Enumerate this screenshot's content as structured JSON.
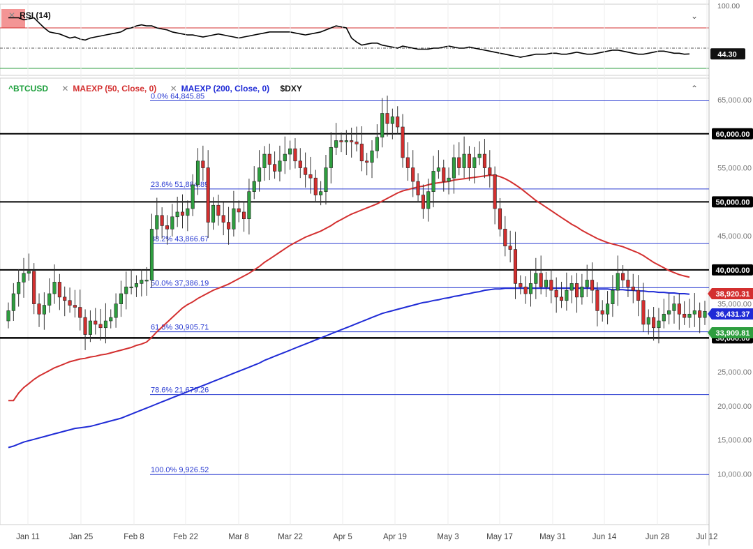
{
  "rsi_panel": {
    "legend": "RSI (14)",
    "axis_top_label": "100.00",
    "current_label": "44.30",
    "levels": {
      "upper": 70,
      "mid": 50,
      "lower": 30
    },
    "colors": {
      "line": "#000000",
      "upper": "#d32f2f",
      "lower": "#2e9e3f",
      "mid": "#555555",
      "overbought_fill": "#f07a7a"
    }
  },
  "legend": {
    "symbol": "^BTCUSD",
    "symbol_color": "#1a9e3a",
    "ma50": "MAEXP (50, Close, 0)",
    "ma50_color": "#d32f2f",
    "ma200": "MAEXP (200, Close, 0)",
    "ma200_color": "#1f2bd6",
    "compare": "$DXY"
  },
  "chart_data": {
    "type": "candlestick",
    "symbol": "^BTCUSD",
    "x_tick_labels": [
      "Jan 11",
      "Jan 25",
      "Feb 8",
      "Feb 22",
      "Mar 8",
      "Mar 22",
      "Apr 5",
      "Apr 19",
      "May 3",
      "May 17",
      "May 31",
      "Jun 14",
      "Jun 28",
      "Jul 12"
    ],
    "y_tick_labels": [
      "65,000.00",
      "60,000.00",
      "55,000.00",
      "50,000.00",
      "45,000.00",
      "40,000.00",
      "35,000.00",
      "30,000.00",
      "25,000.00",
      "20,000.00",
      "15,000.00",
      "10,000.00"
    ],
    "y_ticks": [
      65000,
      60000,
      55000,
      50000,
      45000,
      40000,
      35000,
      30000,
      25000,
      20000,
      15000,
      10000
    ],
    "ylim": [
      9000,
      67000
    ],
    "colors": {
      "up": "#2e9e3f",
      "down": "#d32f2f"
    },
    "horizontal_levels": [
      {
        "value": 60000,
        "label": "60,000.00"
      },
      {
        "value": 50000,
        "label": "50,000.00"
      },
      {
        "value": 40000,
        "label": "40,000.00"
      },
      {
        "value": 30000,
        "label": "30,000.00"
      }
    ],
    "fibonacci": [
      {
        "value": 64845.85,
        "label": "0.0% 64,845.85"
      },
      {
        "value": 51884.89,
        "label": "23.6% 51,884.89"
      },
      {
        "value": 43866.67,
        "label": "38.2% 43,866.67"
      },
      {
        "value": 37386.19,
        "label": "50.0% 37,386.19"
      },
      {
        "value": 30905.71,
        "label": "61.8% 30,905.71"
      },
      {
        "value": 21679.26,
        "label": "78.6% 21,679.26"
      },
      {
        "value": 9926.52,
        "label": "100.0% 9,926.52"
      }
    ],
    "price_labels": [
      {
        "series": "MAEXP (50, Close, 0)",
        "value": 38920.31,
        "label": "38,920.31",
        "color": "#d32f2f"
      },
      {
        "series": "MAEXP (200, Close, 0)",
        "value": 36431.37,
        "label": "36,431.37",
        "color": "#1f2bd6"
      },
      {
        "series": "^BTCUSD",
        "value": 33909.81,
        "label": "33,909.81",
        "color": "#2e9e3f"
      }
    ],
    "candles_close": [
      34000,
      36500,
      38200,
      39500,
      39800,
      35000,
      33500,
      34800,
      36500,
      38200,
      36000,
      35500,
      34800,
      34500,
      33000,
      30500,
      32500,
      32000,
      31500,
      32500,
      33000,
      35000,
      36500,
      37500,
      37500,
      38000,
      38500,
      38500,
      46000,
      48000,
      46500,
      46000,
      47800,
      48500,
      48000,
      49000,
      52500,
      56000,
      55000,
      47000,
      49500,
      48000,
      47000,
      46000,
      49000,
      48500,
      47500,
      51500,
      53000,
      55000,
      57000,
      55500,
      54500,
      56000,
      57000,
      57800,
      56000,
      55000,
      54000,
      53500,
      51000,
      51500,
      55000,
      58000,
      59000,
      58800,
      59000,
      58800,
      58500,
      56000,
      55800,
      57500,
      59500,
      63000,
      61500,
      62500,
      61000,
      56500,
      55000,
      53000,
      51000,
      49000,
      51500,
      54500,
      55000,
      53000,
      53500,
      56500,
      55000,
      57000,
      55000,
      56500,
      57000,
      55000,
      54000,
      49000,
      46000,
      43500,
      43000,
      38000,
      37500,
      36500,
      38000,
      39500,
      37500,
      38500,
      37000,
      36000,
      35500,
      37000,
      38000,
      36000,
      37500,
      38500,
      37000,
      34000,
      33500,
      35000,
      37000,
      39500,
      38500,
      37500,
      37000,
      35500,
      32000,
      33000,
      31500,
      32500,
      33500,
      34000,
      35000,
      33500,
      33000,
      33500,
      34000,
      33000,
      33909.81
    ],
    "ema50": [
      20800,
      20800,
      21900,
      22700,
      23300,
      23900,
      24400,
      24800,
      25200,
      25600,
      25900,
      26200,
      26500,
      26700,
      26900,
      27000,
      27200,
      27300,
      27500,
      27600,
      27800,
      28000,
      28200,
      28400,
      28600,
      28900,
      29100,
      29400,
      30100,
      30900,
      31600,
      32300,
      33000,
      33700,
      34400,
      34900,
      35300,
      35800,
      36200,
      36600,
      37000,
      37300,
      37600,
      37900,
      38300,
      38700,
      39100,
      39500,
      40000,
      40500,
      41100,
      41600,
      42100,
      42600,
      43100,
      43600,
      44000,
      44400,
      44800,
      45100,
      45400,
      45700,
      46100,
      46500,
      47000,
      47400,
      47800,
      48200,
      48500,
      48800,
      49100,
      49400,
      49700,
      50100,
      50500,
      50900,
      51300,
      51600,
      51800,
      52000,
      52200,
      52300,
      52500,
      52700,
      52800,
      52900,
      53000,
      53200,
      53300,
      53400,
      53500,
      53600,
      53700,
      53800,
      53900,
      53900,
      53700,
      53400,
      53000,
      52500,
      52000,
      51400,
      50800,
      50200,
      49700,
      49200,
      48700,
      48200,
      47700,
      47200,
      46700,
      46300,
      45800,
      45400,
      45000,
      44600,
      44300,
      44000,
      43800,
      43600,
      43400,
      43100,
      42800,
      42500,
      42100,
      41600,
      41100,
      40700,
      40300,
      39900,
      39600,
      39300,
      39100,
      38920.31
    ],
    "ema200": [
      13900,
      14100,
      14400,
      14700,
      14900,
      15100,
      15300,
      15500,
      15700,
      15900,
      16100,
      16300,
      16500,
      16700,
      16800,
      16900,
      17000,
      17200,
      17400,
      17600,
      17800,
      18000,
      18200,
      18500,
      18800,
      19100,
      19400,
      19700,
      20000,
      20300,
      20600,
      20900,
      21200,
      21500,
      21800,
      22100,
      22400,
      22700,
      23000,
      23300,
      23600,
      23900,
      24200,
      24500,
      24800,
      25100,
      25400,
      25700,
      26000,
      26300,
      26700,
      27000,
      27300,
      27600,
      27900,
      28200,
      28500,
      28800,
      29100,
      29400,
      29700,
      30000,
      30300,
      30600,
      30900,
      31200,
      31500,
      31800,
      32100,
      32400,
      32700,
      33000,
      33300,
      33600,
      33800,
      34000,
      34200,
      34400,
      34600,
      34800,
      35000,
      35200,
      35300,
      35500,
      35600,
      35800,
      35900,
      36100,
      36200,
      36400,
      36500,
      36700,
      36800,
      37000,
      37100,
      37200,
      37200,
      37300,
      37300,
      37300,
      37300,
      37300,
      37300,
      37300,
      37300,
      37300,
      37300,
      37300,
      37300,
      37300,
      37300,
      37300,
      37300,
      37300,
      37300,
      37200,
      37200,
      37200,
      37100,
      37100,
      37100,
      37000,
      37000,
      36900,
      36900,
      36800,
      36800,
      36700,
      36700,
      36600,
      36600,
      36500,
      36500,
      36431.37
    ],
    "rsi": [
      80,
      80,
      80,
      78,
      79,
      80,
      75,
      70,
      66,
      65,
      64,
      62,
      60,
      61,
      59,
      58,
      60,
      61,
      62,
      63,
      64,
      65,
      66,
      69,
      70,
      72,
      73,
      72,
      72,
      70,
      69,
      68,
      66,
      65,
      64,
      63,
      63,
      62,
      61,
      62,
      63,
      64,
      63,
      62,
      61,
      60,
      61,
      62,
      63,
      64,
      65,
      66,
      66,
      66,
      66,
      66,
      65,
      64,
      63,
      64,
      65,
      66,
      68,
      70,
      72,
      71,
      70,
      60,
      56,
      53,
      54,
      55,
      55,
      53,
      52,
      51,
      50,
      52,
      51,
      50,
      49,
      49,
      49,
      50,
      50,
      51,
      52,
      51,
      50,
      50,
      51,
      50,
      49,
      48,
      47,
      46,
      45,
      44,
      43,
      42,
      41,
      42,
      43,
      44,
      44,
      44,
      45,
      45,
      44,
      44,
      45,
      46,
      45,
      44,
      44,
      45,
      46,
      47,
      48,
      48,
      47,
      46,
      45,
      44,
      44,
      45,
      46,
      47,
      47,
      46,
      45,
      45,
      44,
      44.3
    ]
  },
  "date_range": {
    "start": "2021-01-04",
    "end": "2021-07-12"
  }
}
